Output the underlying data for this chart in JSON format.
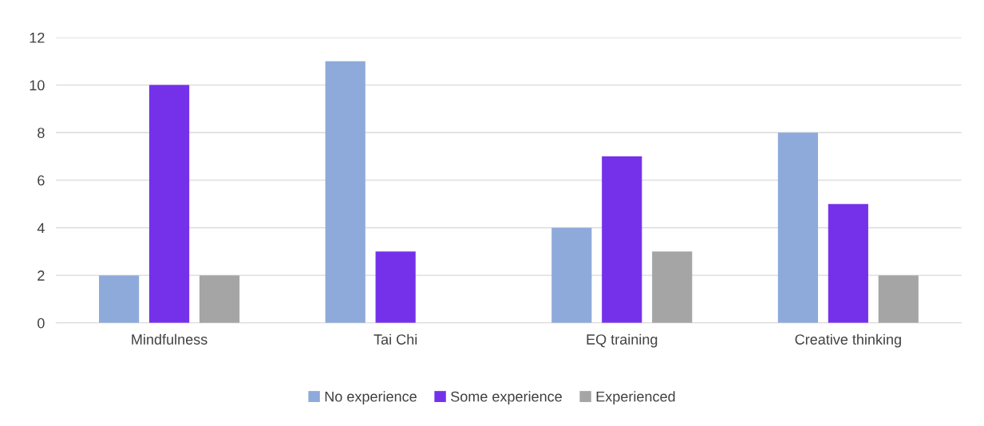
{
  "chart_data": {
    "type": "bar",
    "categories": [
      "Mindfulness",
      "Tai Chi",
      "EQ training",
      "Creative thinking"
    ],
    "series": [
      {
        "name": "No experience",
        "color": "#8eaadb",
        "values": [
          2,
          11,
          4,
          8
        ]
      },
      {
        "name": "Some experience",
        "color": "#7531ea",
        "values": [
          10,
          3,
          7,
          5
        ]
      },
      {
        "name": "Experienced",
        "color": "#a5a5a5",
        "values": [
          2,
          0,
          3,
          2
        ]
      }
    ],
    "ylim": [
      0,
      12
    ],
    "yticks": [
      0,
      2,
      4,
      6,
      8,
      10,
      12
    ],
    "grid": "y",
    "legend": "bottom"
  }
}
